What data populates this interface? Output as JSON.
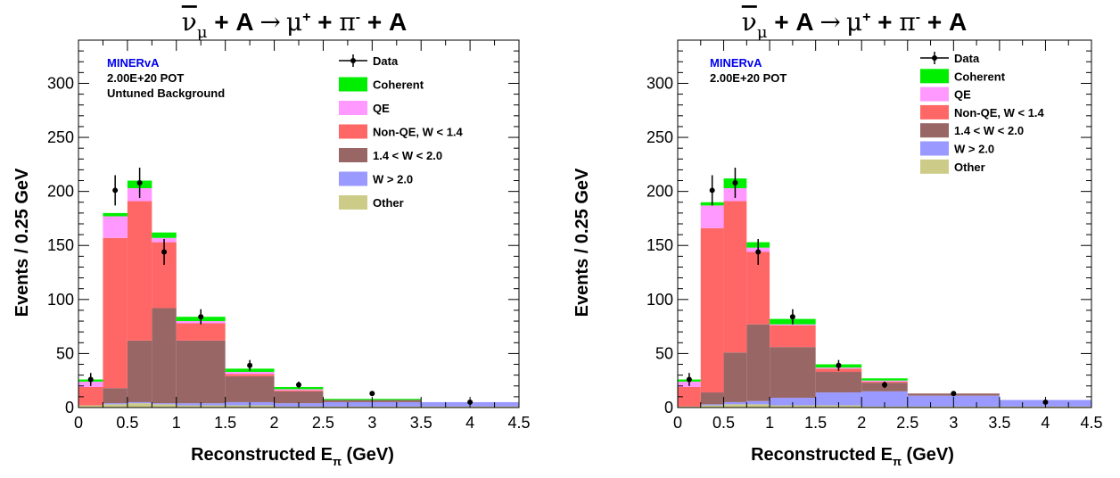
{
  "colors": {
    "coherent": "#00ee00",
    "qe": "#ff99ff",
    "nonqe": "#ff6666",
    "w14_20": "#996666",
    "w20": "#9999ff",
    "other": "#cccc88"
  },
  "chart_data": [
    {
      "type": "bar",
      "stacked": true,
      "title": {
        "nu": "ν",
        "nu_sub": "μ",
        "lhs": " + A ",
        "arrow": "→",
        "mu": "μ",
        "mu_sup": "+",
        "plus1": " + ",
        "pi": "π",
        "pi_sup": "-",
        "rhs": " + A"
      },
      "xlabel": {
        "main": "Reconstructed E",
        "sub": "π",
        "unit": " (GeV)"
      },
      "ylabel": "Events / 0.25 GeV",
      "xlim": [
        0,
        4.5
      ],
      "ylim": [
        0,
        340
      ],
      "xticks": [
        "0",
        "0.5",
        "1",
        "1.5",
        "2",
        "2.5",
        "3",
        "3.5",
        "4",
        "4.5"
      ],
      "yticks": [
        "0",
        "50",
        "100",
        "150",
        "200",
        "250",
        "300"
      ],
      "annotations": [
        "MINERvA",
        "2.00E+20 POT",
        "Untuned Background"
      ],
      "bin_edges": [
        0,
        0.25,
        0.5,
        0.75,
        1.0,
        1.5,
        2.0,
        2.5,
        3.5,
        4.5
      ],
      "series": [
        {
          "name": "Other",
          "color_key": "other",
          "values": [
            2,
            3,
            4,
            3,
            2,
            2,
            1,
            1,
            1
          ]
        },
        {
          "name": "W > 2.0",
          "color_key": "w20",
          "values": [
            0,
            1,
            1,
            1,
            2,
            3,
            3,
            4,
            4
          ]
        },
        {
          "name": "1.4 < W < 2.0",
          "color_key": "w14_20",
          "values": [
            0,
            14,
            57,
            88,
            58,
            24,
            11,
            2,
            0
          ]
        },
        {
          "name": "Non-QE, W < 1.4",
          "color_key": "nonqe",
          "values": [
            17,
            139,
            129,
            61,
            16,
            2,
            1,
            0,
            0
          ]
        },
        {
          "name": "QE",
          "color_key": "qe",
          "values": [
            5,
            20,
            12,
            4,
            2,
            2,
            1,
            0,
            0
          ]
        },
        {
          "name": "Coherent",
          "color_key": "coherent",
          "values": [
            2,
            3,
            7,
            5,
            4,
            3,
            2,
            1,
            0
          ]
        }
      ],
      "data_points": {
        "name": "Data",
        "x": [
          0.125,
          0.375,
          0.625,
          0.875,
          1.25,
          1.75,
          2.25,
          3.0,
          4.0
        ],
        "y": [
          26,
          201,
          208,
          144,
          84,
          39,
          21,
          13,
          5
        ],
        "err": [
          6,
          14,
          14,
          12,
          7,
          5,
          3,
          0,
          0
        ]
      },
      "legend": {
        "position": "top-right",
        "entries": [
          "Data",
          "Coherent",
          "QE",
          "Non-QE, W < 1.4",
          "1.4 < W < 2.0",
          "W > 2.0",
          "Other"
        ]
      }
    },
    {
      "type": "bar",
      "stacked": true,
      "title": {
        "nu": "ν",
        "nu_sub": "μ",
        "lhs": " + A ",
        "arrow": "→",
        "mu": "μ",
        "mu_sup": "+",
        "plus1": " + ",
        "pi": "π",
        "pi_sup": "-",
        "rhs": " + A"
      },
      "xlabel": {
        "main": "Reconstructed E",
        "sub": "π",
        "unit": " (GeV)"
      },
      "ylabel": "Events / 0.25 GeV",
      "xlim": [
        0,
        4.5
      ],
      "ylim": [
        0,
        340
      ],
      "xticks": [
        "0",
        "0.5",
        "1",
        "1.5",
        "2",
        "2.5",
        "3",
        "3.5",
        "4",
        "4.5"
      ],
      "yticks": [
        "0",
        "50",
        "100",
        "150",
        "200",
        "250",
        "300"
      ],
      "annotations": [
        "MINERvA",
        "2.00E+20 POT"
      ],
      "bin_edges": [
        0,
        0.25,
        0.5,
        0.75,
        1.0,
        1.5,
        2.0,
        2.5,
        3.5,
        4.5
      ],
      "series": [
        {
          "name": "Other",
          "color_key": "other",
          "values": [
            1,
            2,
            3,
            3,
            2,
            2,
            1,
            1,
            1
          ]
        },
        {
          "name": "W > 2.0",
          "color_key": "w20",
          "values": [
            0,
            1,
            2,
            3,
            7,
            12,
            14,
            10,
            6
          ]
        },
        {
          "name": "1.4 < W < 2.0",
          "color_key": "w14_20",
          "values": [
            0,
            11,
            46,
            71,
            47,
            19,
            8,
            2,
            0
          ]
        },
        {
          "name": "Non-QE, W < 1.4",
          "color_key": "nonqe",
          "values": [
            18,
            152,
            140,
            67,
            20,
            3,
            1,
            0,
            0
          ]
        },
        {
          "name": "QE",
          "color_key": "qe",
          "values": [
            5,
            21,
            12,
            4,
            1,
            1,
            1,
            0,
            0
          ]
        },
        {
          "name": "Coherent",
          "color_key": "coherent",
          "values": [
            2,
            3,
            9,
            5,
            5,
            3,
            2,
            0,
            0
          ]
        }
      ],
      "data_points": {
        "name": "Data",
        "x": [
          0.125,
          0.375,
          0.625,
          0.875,
          1.25,
          1.75,
          2.25,
          3.0,
          4.0
        ],
        "y": [
          26,
          201,
          208,
          144,
          84,
          39,
          21,
          13,
          5
        ],
        "err": [
          6,
          14,
          14,
          12,
          7,
          5,
          3,
          0,
          0
        ]
      },
      "legend": {
        "position": "top-right",
        "entries": [
          "Data",
          "Coherent",
          "QE",
          "Non-QE, W < 1.4",
          "1.4 < W < 2.0",
          "W > 2.0",
          "Other"
        ]
      }
    }
  ]
}
